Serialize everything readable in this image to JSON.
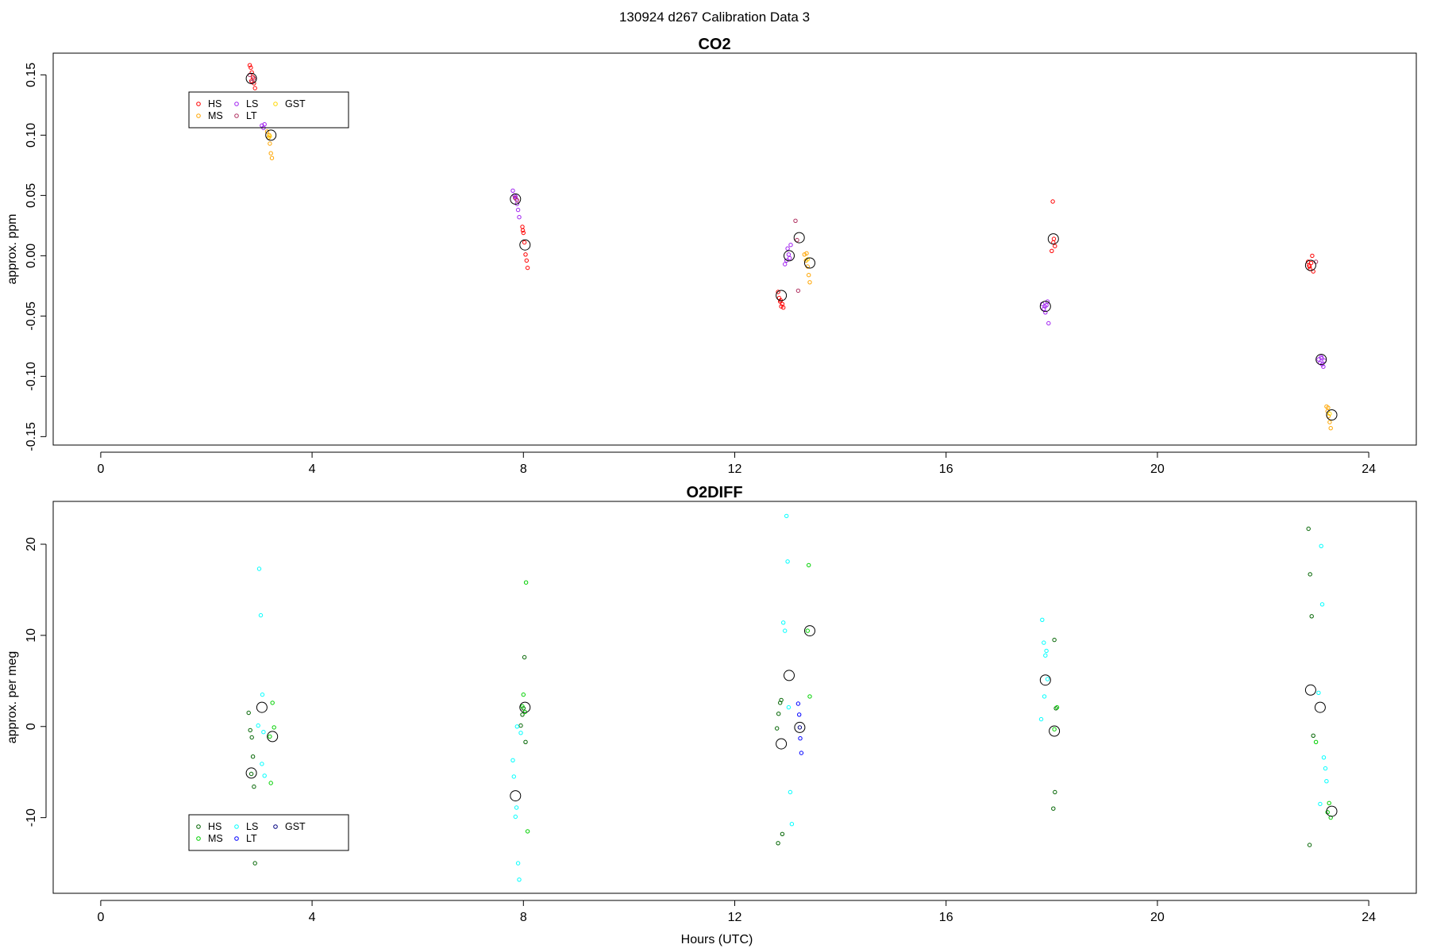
{
  "suptitle": "130924   d267   Calibration Data 3",
  "xlabel": "Hours (UTC)",
  "chart_data": [
    {
      "type": "scatter",
      "title": "CO2",
      "xlabel": "",
      "ylabel": "approx. ppm",
      "xlim": [
        -0.9,
        24.9
      ],
      "ylim": [
        -0.157,
        0.168
      ],
      "xticks": [
        0,
        4,
        8,
        12,
        16,
        20,
        24
      ],
      "xtick_labels": [
        "0",
        "4",
        "8",
        "12",
        "16",
        "20",
        "24"
      ],
      "yticks": [
        -0.15,
        -0.1,
        -0.05,
        0.0,
        0.05,
        0.1,
        0.15
      ],
      "ytick_labels": [
        "-0.15",
        "-0.10",
        "-0.05",
        "0.00",
        "0.05",
        "0.10",
        "0.15"
      ],
      "grid": false,
      "legend": {
        "placement": "top-left",
        "columns": 3,
        "entries": [
          {
            "label": "HS",
            "color": "#ff0000"
          },
          {
            "label": "MS",
            "color": "#ffa500"
          },
          {
            "label": "LS",
            "color": "#a020f0"
          },
          {
            "label": "LT",
            "color": "#b03060"
          },
          {
            "label": "GST",
            "color": "#ffd700"
          }
        ]
      },
      "series": [
        {
          "name": "HS",
          "color": "#ff0000",
          "x": [
            2.82,
            2.84,
            2.86,
            2.88,
            2.9,
            2.92,
            2.85,
            7.98,
            8.0,
            8.02,
            8.04,
            8.06,
            8.08,
            7.99,
            12.82,
            12.84,
            12.86,
            12.88,
            12.9,
            12.92,
            12.87,
            18.02,
            18.04,
            18.06,
            18.0,
            18.03,
            22.85,
            22.87,
            22.89,
            22.91,
            22.93,
            22.95,
            22.88
          ],
          "y": [
            0.158,
            0.156,
            0.152,
            0.148,
            0.143,
            0.139,
            0.145,
            0.024,
            0.019,
            0.011,
            0.001,
            -0.004,
            -0.01,
            0.021,
            -0.03,
            -0.035,
            -0.038,
            -0.042,
            -0.04,
            -0.043,
            -0.037,
            0.045,
            0.014,
            0.008,
            0.004,
            0.011,
            -0.005,
            -0.008,
            -0.011,
            -0.006,
            0.0,
            -0.013,
            -0.009
          ]
        },
        {
          "name": "MS",
          "color": "#ffa500",
          "x": [
            3.15,
            3.18,
            3.2,
            3.22,
            3.24,
            3.19,
            13.32,
            13.35,
            13.38,
            13.4,
            13.42,
            13.36,
            23.2,
            23.22,
            23.24,
            23.26,
            23.28,
            23.23
          ],
          "y": [
            0.103,
            0.098,
            0.093,
            0.085,
            0.081,
            0.1,
            0.001,
            -0.004,
            -0.009,
            -0.016,
            -0.022,
            0.002,
            -0.125,
            -0.129,
            -0.133,
            -0.138,
            -0.143,
            -0.126
          ]
        },
        {
          "name": "LS",
          "color": "#a020f0",
          "x": [
            3.05,
            3.08,
            3.1,
            7.8,
            7.83,
            7.86,
            7.88,
            7.9,
            7.92,
            7.85,
            12.95,
            12.98,
            13.0,
            13.02,
            13.04,
            13.06,
            17.82,
            17.85,
            17.88,
            17.9,
            17.92,
            17.94,
            17.87,
            23.05,
            23.08,
            23.1,
            23.12,
            23.14,
            23.16,
            23.11
          ],
          "y": [
            0.108,
            0.106,
            0.109,
            0.054,
            0.05,
            0.047,
            0.043,
            0.038,
            0.032,
            0.049,
            -0.007,
            -0.004,
            0.006,
            0.001,
            -0.002,
            0.009,
            -0.04,
            -0.044,
            -0.047,
            -0.041,
            -0.038,
            -0.056,
            -0.042,
            -0.086,
            -0.089,
            -0.084,
            -0.09,
            -0.092,
            -0.087,
            -0.085
          ]
        },
        {
          "name": "LT",
          "color": "#b03060",
          "x": [
            2.82,
            2.86,
            2.9,
            7.84,
            7.88,
            13.15,
            13.18,
            13.2,
            23.0
          ],
          "y": [
            0.15,
            0.144,
            0.147,
            0.048,
            0.046,
            0.029,
            0.013,
            -0.029,
            -0.005
          ]
        },
        {
          "name": "GST",
          "color": "#ffd700",
          "x": [
            3.2,
            13.38,
            23.26
          ],
          "y": [
            0.099,
            -0.003,
            -0.131
          ]
        },
        {
          "name": "mean",
          "color": "#000000",
          "big": true,
          "x": [
            2.85,
            3.22,
            7.85,
            8.03,
            12.88,
            13.03,
            13.22,
            13.42,
            17.88,
            18.03,
            22.9,
            23.1,
            23.3
          ],
          "y": [
            0.147,
            0.1,
            0.047,
            0.009,
            -0.033,
            0.0,
            0.015,
            -0.006,
            -0.042,
            0.014,
            -0.008,
            -0.086,
            -0.132
          ]
        }
      ]
    },
    {
      "type": "scatter",
      "title": "O2DIFF",
      "xlabel": "Hours (UTC)",
      "ylabel": "approx. per meg",
      "xlim": [
        -0.9,
        24.9
      ],
      "ylim": [
        -18.3,
        24.7
      ],
      "xticks": [
        0,
        4,
        8,
        12,
        16,
        20,
        24
      ],
      "xtick_labels": [
        "0",
        "4",
        "8",
        "12",
        "16",
        "20",
        "24"
      ],
      "yticks": [
        -10,
        0,
        10,
        20
      ],
      "ytick_labels": [
        "-10",
        "0",
        "10",
        "20"
      ],
      "grid": false,
      "legend": {
        "placement": "bottom-left",
        "columns": 3,
        "entries": [
          {
            "label": "HS",
            "color": "#006400"
          },
          {
            "label": "MS",
            "color": "#00d000"
          },
          {
            "label": "LS",
            "color": "#00ffff"
          },
          {
            "label": "LT",
            "color": "#0000ff"
          },
          {
            "label": "GST",
            "color": "#000080"
          }
        ]
      },
      "series": [
        {
          "name": "HS",
          "color": "#006400",
          "x": [
            2.8,
            2.83,
            2.86,
            2.88,
            2.9,
            2.92,
            2.85,
            7.95,
            7.98,
            8.0,
            8.02,
            8.04,
            12.8,
            12.83,
            12.86,
            12.88,
            12.9,
            12.82,
            18.05,
            18.08,
            18.06,
            18.03,
            22.86,
            22.89,
            22.92,
            22.95,
            22.88
          ],
          "y": [
            1.5,
            -0.4,
            -1.2,
            -3.3,
            -6.6,
            -15.0,
            -5.2,
            0.1,
            1.3,
            2.0,
            7.6,
            -1.7,
            -0.2,
            1.4,
            2.6,
            2.9,
            -11.8,
            -12.8,
            9.5,
            2.0,
            -7.2,
            -9.0,
            21.7,
            16.7,
            12.1,
            -1.0,
            -13.0
          ]
        },
        {
          "name": "MS",
          "color": "#00d000",
          "x": [
            3.25,
            3.28,
            3.22,
            3.2,
            8.0,
            8.03,
            8.05,
            8.08,
            7.98,
            13.4,
            13.42,
            13.38,
            18.1,
            18.05,
            23.25,
            23.28,
            23.22,
            23.0
          ],
          "y": [
            2.6,
            -0.1,
            -6.2,
            -1.1,
            3.5,
            1.6,
            15.8,
            -11.5,
            2.2,
            17.7,
            3.3,
            10.5,
            2.1,
            -0.3,
            -8.4,
            -10.0,
            -9.4,
            -1.7
          ]
        },
        {
          "name": "LS",
          "color": "#00ffff",
          "x": [
            3.0,
            3.03,
            3.06,
            3.08,
            2.98,
            3.1,
            3.05,
            7.8,
            7.82,
            7.85,
            7.87,
            7.9,
            7.92,
            7.95,
            7.88,
            12.92,
            12.95,
            12.98,
            13.0,
            13.02,
            13.05,
            13.08,
            17.82,
            17.85,
            17.88,
            17.9,
            17.92,
            17.86,
            17.8,
            23.1,
            23.12,
            23.15,
            23.18,
            23.2,
            23.05,
            23.08
          ],
          "y": [
            17.3,
            12.2,
            3.5,
            -0.6,
            0.1,
            -5.4,
            -4.1,
            -3.7,
            -5.5,
            -9.9,
            -8.9,
            -15.0,
            -16.8,
            -0.7,
            0.0,
            11.4,
            10.5,
            23.1,
            18.1,
            2.1,
            -7.2,
            -10.7,
            11.7,
            9.2,
            7.8,
            8.3,
            5.2,
            3.3,
            0.8,
            19.8,
            13.4,
            -3.4,
            -4.6,
            -6.0,
            3.7,
            -8.5
          ]
        },
        {
          "name": "LT",
          "color": "#0000ff",
          "x": [
            13.2,
            13.22,
            13.24,
            13.26
          ],
          "y": [
            2.5,
            1.3,
            -1.3,
            -2.9
          ]
        },
        {
          "name": "GST",
          "color": "#000080",
          "x": [
            13.23
          ],
          "y": [
            -0.1
          ]
        },
        {
          "name": "mean",
          "color": "#000000",
          "big": true,
          "x": [
            2.85,
            3.05,
            3.25,
            7.85,
            8.03,
            12.88,
            13.03,
            13.23,
            13.42,
            17.88,
            18.05,
            22.9,
            23.08,
            23.3
          ],
          "y": [
            -5.1,
            2.1,
            -1.1,
            -7.6,
            2.1,
            -1.9,
            5.6,
            -0.1,
            10.5,
            5.1,
            -0.5,
            4.0,
            2.1,
            -9.3
          ]
        }
      ]
    }
  ]
}
